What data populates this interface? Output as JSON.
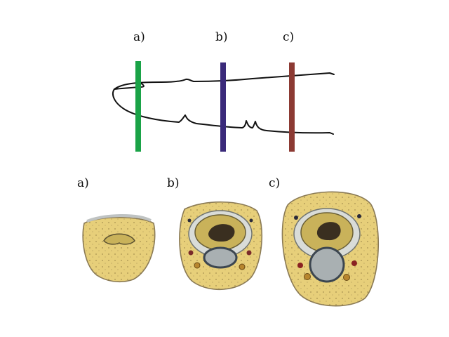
{
  "labels": {
    "top": [
      "a)",
      "b)",
      "c)"
    ],
    "bottom": [
      "a)",
      "b)",
      "c)"
    ]
  },
  "colors": {
    "outline": "#111111",
    "cut_a": "#1aa347",
    "cut_b": "#3a2a7a",
    "cut_c": "#8c3a33",
    "tissue": "#e7cf7a",
    "tissue_edge": "#8a7a55",
    "bone_ring": "#d9dcd8",
    "bone_inner": "#c9b25a",
    "marrow": "#3a2f20",
    "tendon": "#a9b0b2"
  }
}
